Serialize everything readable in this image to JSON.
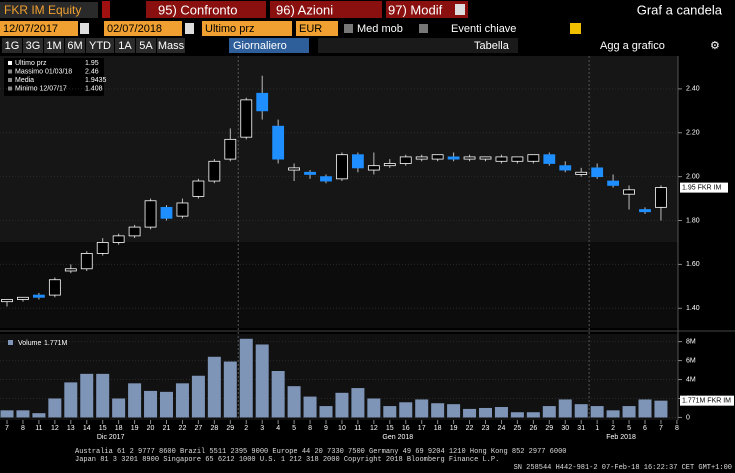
{
  "header": {
    "ticker": "FKR IM Equity",
    "menu": [
      "95) Confronto",
      "96) Azioni",
      "97) Modif"
    ],
    "title": "Graf a candela"
  },
  "controls": {
    "start_date": "12/07/2017",
    "end_date": "02/07/2018",
    "field": "Ultimo prz",
    "currency": "EUR",
    "options": [
      "Med mob",
      "Eventi chiave"
    ]
  },
  "periods": [
    "1G",
    "3G",
    "1M",
    "6M",
    "YTD",
    "1A",
    "5A",
    "Mass"
  ],
  "frequency": "Giornaliero",
  "actions": [
    "Tabella",
    "Agg a grafico"
  ],
  "chart_data": [
    {
      "type": "candlestick",
      "categories": [
        "7",
        "8",
        "11",
        "12",
        "13",
        "14",
        "15",
        "18",
        "19",
        "20",
        "21",
        "22",
        "27",
        "28",
        "29",
        "2",
        "3",
        "4",
        "5",
        "8",
        "9",
        "10",
        "11",
        "12",
        "15",
        "16",
        "17",
        "18",
        "19",
        "22",
        "23",
        "24",
        "25",
        "26",
        "29",
        "30",
        "31",
        "1",
        "2",
        "5",
        "6",
        "7",
        "8"
      ],
      "period_labels": [
        "Dic 2017",
        "Gen 2018",
        "Feb 2018"
      ],
      "open": [
        1.43,
        1.44,
        1.46,
        1.46,
        1.57,
        1.58,
        1.65,
        1.7,
        1.73,
        1.77,
        1.86,
        1.82,
        1.91,
        1.98,
        2.08,
        2.18,
        2.38,
        2.23,
        2.03,
        2.02,
        2.0,
        1.99,
        2.1,
        2.03,
        2.05,
        2.06,
        2.08,
        2.08,
        2.09,
        2.08,
        2.08,
        2.07,
        2.07,
        2.07,
        2.1,
        2.05,
        2.01,
        2.04,
        1.98,
        1.92,
        1.85,
        1.86,
        null
      ],
      "high": [
        1.44,
        1.45,
        1.47,
        1.54,
        1.6,
        1.66,
        1.72,
        1.74,
        1.78,
        1.9,
        1.87,
        1.9,
        1.99,
        2.08,
        2.22,
        2.36,
        2.46,
        2.26,
        2.06,
        2.03,
        2.01,
        2.11,
        2.11,
        2.11,
        2.08,
        2.1,
        2.1,
        2.1,
        2.11,
        2.1,
        2.09,
        2.1,
        2.09,
        2.1,
        2.11,
        2.07,
        2.04,
        2.06,
        2.01,
        1.96,
        1.86,
        1.96,
        null
      ],
      "low": [
        1.408,
        1.43,
        1.44,
        1.45,
        1.56,
        1.57,
        1.64,
        1.69,
        1.72,
        1.76,
        1.8,
        1.81,
        1.9,
        1.97,
        2.07,
        2.17,
        2.26,
        2.06,
        1.98,
        1.99,
        1.97,
        1.98,
        2.02,
        2.01,
        2.04,
        2.05,
        2.07,
        2.07,
        2.07,
        2.07,
        2.07,
        2.06,
        2.06,
        2.06,
        2.05,
        2.02,
        2.0,
        1.99,
        1.95,
        1.85,
        1.83,
        1.8,
        null
      ],
      "close": [
        1.44,
        1.45,
        1.45,
        1.53,
        1.58,
        1.65,
        1.7,
        1.73,
        1.77,
        1.89,
        1.81,
        1.88,
        1.98,
        2.07,
        2.17,
        2.35,
        2.3,
        2.08,
        2.04,
        2.01,
        1.98,
        2.1,
        2.04,
        2.05,
        2.06,
        2.09,
        2.09,
        2.1,
        2.08,
        2.09,
        2.09,
        2.09,
        2.09,
        2.1,
        2.06,
        2.03,
        2.02,
        2.0,
        1.96,
        1.94,
        1.84,
        1.95,
        null
      ],
      "up_color": "#ffffff",
      "down_color": "#1f8fff",
      "ylim": [
        1.31,
        2.55
      ],
      "yticks": [
        {
          "value": 1.4,
          "label": "1.40"
        },
        {
          "value": 1.6,
          "label": "1.60"
        },
        {
          "value": 1.8,
          "label": "1.80"
        },
        {
          "value": 2.0,
          "label": "2.00"
        },
        {
          "value": 2.2,
          "label": "2.20"
        },
        {
          "value": 2.4,
          "label": "2.40"
        }
      ],
      "legend_rows": [
        {
          "label": "Ultimo prz",
          "value": 1.95
        },
        {
          "label": "Massimo 01/03/18",
          "value": 2.46
        },
        {
          "label": "Media",
          "value": 1.9435
        },
        {
          "label": "Minimo 12/07/17",
          "value": 1.408
        }
      ],
      "last_tag": "1.95 FKR IM"
    },
    {
      "type": "bar",
      "series": [
        {
          "name": "Volume",
          "color": "#7f95b8",
          "values": [
            750000,
            750000,
            450000,
            2000000,
            3700000,
            4600000,
            4600000,
            2000000,
            3600000,
            2800000,
            2700000,
            3600000,
            4400000,
            6400000,
            5900000,
            8300000,
            7700000,
            4900000,
            3300000,
            2200000,
            1200000,
            2600000,
            3100000,
            2000000,
            1200000,
            1600000,
            1900000,
            1500000,
            1400000,
            900000,
            1000000,
            1100000,
            550000,
            550000,
            1200000,
            1900000,
            1400000,
            1200000,
            750000,
            1200000,
            1900000,
            1771000,
            null
          ],
          "value_label": "1.771M"
        }
      ],
      "ylim": [
        -270000,
        8700000
      ],
      "yticks": [
        0,
        {
          "value": 2000000,
          "label": "2M"
        },
        {
          "value": 4000000,
          "label": "4M"
        },
        {
          "value": 6000000,
          "label": "6M"
        },
        {
          "value": 8000000,
          "label": "8M"
        }
      ],
      "last_tag": "1.771M FKR IM"
    }
  ],
  "footer": [
    "Australia 61 2 9777 8600 Brazil 5511 2395 9000 Europe 44 20 7330 7500 Germany 49 69 9204 1210 Hong Kong 852 2977 6000",
    "Japan 81 3 3201 8900 Singapore 65 6212 1000 U.S. 1 212 318 2000 Copyright 2018 Bloomberg Finance L.P.",
    "SN 258544 H442-981-2 07-Feb-18 16:22:37 CET GMT+1:00"
  ]
}
